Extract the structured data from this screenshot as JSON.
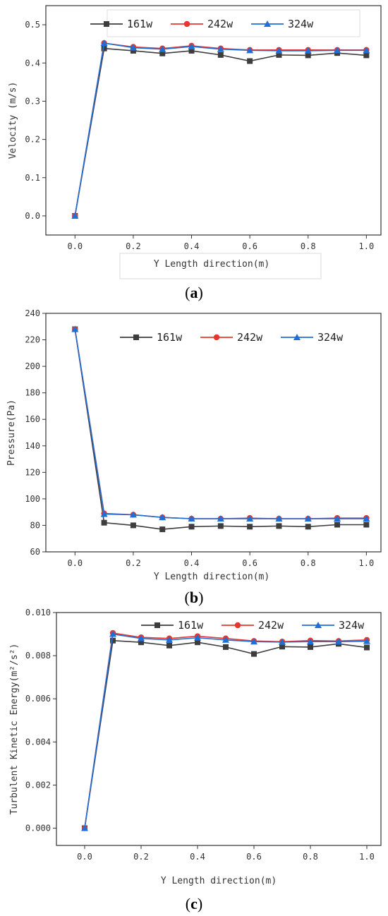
{
  "colors": {
    "161w": "#3d3d3d",
    "242w": "#e8362f",
    "324w": "#1f6fd6"
  },
  "captions": [
    {
      "open": "(",
      "letter": "a",
      "close": ")"
    },
    {
      "open": "(",
      "letter": "b",
      "close": ")"
    },
    {
      "open": "(",
      "letter": "c",
      "close": ")"
    }
  ],
  "chart_data": [
    {
      "type": "line",
      "xlabel": "Y Length direction(m)",
      "ylabel": "Velocity (m/s)",
      "xlim": [
        -0.1,
        1.05
      ],
      "ylim": [
        -0.05,
        0.55
      ],
      "xticks": [
        "0.0",
        "0.2",
        "0.4",
        "0.6",
        "0.8",
        "1.0"
      ],
      "yticks": [
        "0.0",
        "0.1",
        "0.2",
        "0.3",
        "0.4",
        "0.5"
      ],
      "legend_position": "top",
      "x": [
        0.0,
        0.1,
        0.2,
        0.3,
        0.4,
        0.5,
        0.6,
        0.7,
        0.8,
        0.9,
        1.0
      ],
      "series": [
        {
          "name": "161w",
          "marker": "square",
          "values": [
            0.0,
            0.438,
            0.432,
            0.425,
            0.432,
            0.421,
            0.405,
            0.421,
            0.42,
            0.426,
            0.42
          ]
        },
        {
          "name": "242w",
          "marker": "circle",
          "values": [
            0.0,
            0.452,
            0.442,
            0.438,
            0.445,
            0.438,
            0.434,
            0.434,
            0.434,
            0.434,
            0.434
          ]
        },
        {
          "name": "324w",
          "marker": "triangle",
          "values": [
            0.0,
            0.452,
            0.44,
            0.436,
            0.443,
            0.436,
            0.433,
            0.432,
            0.432,
            0.433,
            0.433
          ]
        }
      ]
    },
    {
      "type": "line",
      "xlabel": "Y Length direction(m)",
      "ylabel": "Pressure(Pa)",
      "xlim": [
        -0.1,
        1.05
      ],
      "ylim": [
        60,
        240
      ],
      "xticks": [
        "0.0",
        "0.2",
        "0.4",
        "0.6",
        "0.8",
        "1.0"
      ],
      "yticks": [
        "60",
        "80",
        "100",
        "120",
        "140",
        "160",
        "180",
        "200",
        "220",
        "240"
      ],
      "legend_position": "top-right",
      "x": [
        0.0,
        0.1,
        0.2,
        0.3,
        0.4,
        0.5,
        0.6,
        0.7,
        0.8,
        0.9,
        1.0
      ],
      "series": [
        {
          "name": "161w",
          "marker": "square",
          "values": [
            228,
            82,
            80,
            77,
            79,
            79.5,
            79,
            79.5,
            79,
            80.5,
            80.5
          ]
        },
        {
          "name": "242w",
          "marker": "circle",
          "values": [
            228,
            89,
            88,
            86,
            85,
            85,
            85.5,
            85,
            85,
            85.5,
            85.5
          ]
        },
        {
          "name": "324w",
          "marker": "triangle",
          "values": [
            228,
            88.5,
            88,
            86,
            85,
            85,
            85,
            85,
            85,
            85,
            85
          ]
        }
      ]
    },
    {
      "type": "line",
      "xlabel": "Y Length direction(m)",
      "ylabel": "Turbulent Kinetic Energy(m²/s²)",
      "xlim": [
        -0.1,
        1.05
      ],
      "ylim": [
        -0.0008,
        0.01
      ],
      "xticks": [
        "0.0",
        "0.2",
        "0.4",
        "0.6",
        "0.8",
        "1.0"
      ],
      "yticks": [
        "0.000",
        "0.002",
        "0.004",
        "0.006",
        "0.008",
        "0.010"
      ],
      "legend_position": "top",
      "x": [
        0.0,
        0.1,
        0.2,
        0.3,
        0.4,
        0.5,
        0.6,
        0.7,
        0.8,
        0.9,
        1.0
      ],
      "series": [
        {
          "name": "161w",
          "marker": "square",
          "values": [
            0.0,
            0.0087,
            0.00862,
            0.00847,
            0.00862,
            0.0084,
            0.00808,
            0.00842,
            0.0084,
            0.00855,
            0.00838
          ]
        },
        {
          "name": "242w",
          "marker": "circle",
          "values": [
            0.0,
            0.00905,
            0.00885,
            0.0088,
            0.0089,
            0.0088,
            0.00868,
            0.00865,
            0.0087,
            0.00868,
            0.00873
          ]
        },
        {
          "name": "324w",
          "marker": "triangle",
          "values": [
            0.0,
            0.009,
            0.0088,
            0.00873,
            0.00883,
            0.00873,
            0.00865,
            0.00863,
            0.00865,
            0.00865,
            0.00867
          ]
        }
      ]
    }
  ]
}
